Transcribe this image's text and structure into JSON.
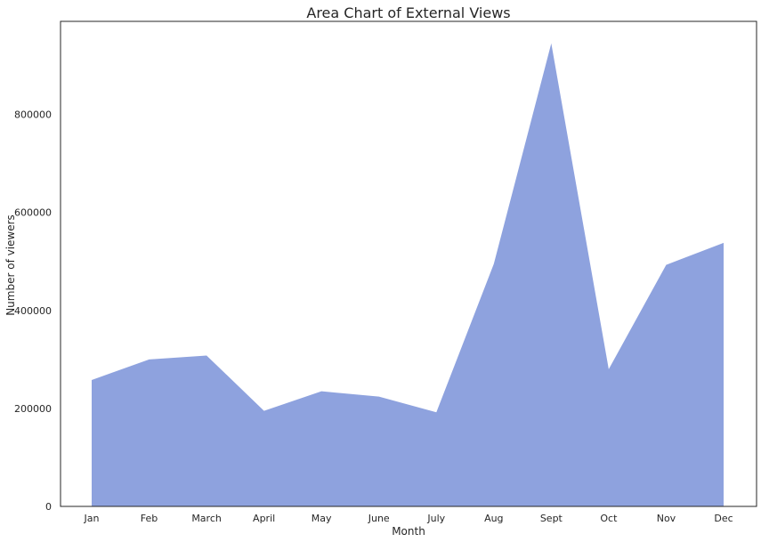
{
  "chart_data": {
    "type": "area",
    "title": "Area Chart of External Views",
    "xlabel": "Month",
    "ylabel": "Number of viewers",
    "categories": [
      "Jan",
      "Feb",
      "March",
      "April",
      "May",
      "June",
      "July",
      "Aug",
      "Sept",
      "Oct",
      "Nov",
      "Dec"
    ],
    "series": [
      {
        "values": [
          258000,
          300000,
          308000,
          195000,
          235000,
          224000,
          192000,
          495000,
          945000,
          280000,
          493000,
          538000
        ]
      }
    ],
    "ylim": [
      0,
      990000
    ],
    "yticks": [
      0,
      200000,
      400000,
      600000,
      800000
    ],
    "ytick_labels": [
      "0",
      "200000",
      "400000",
      "600000",
      "800000"
    ],
    "grid": false,
    "fill_color": "#8ea2de"
  }
}
